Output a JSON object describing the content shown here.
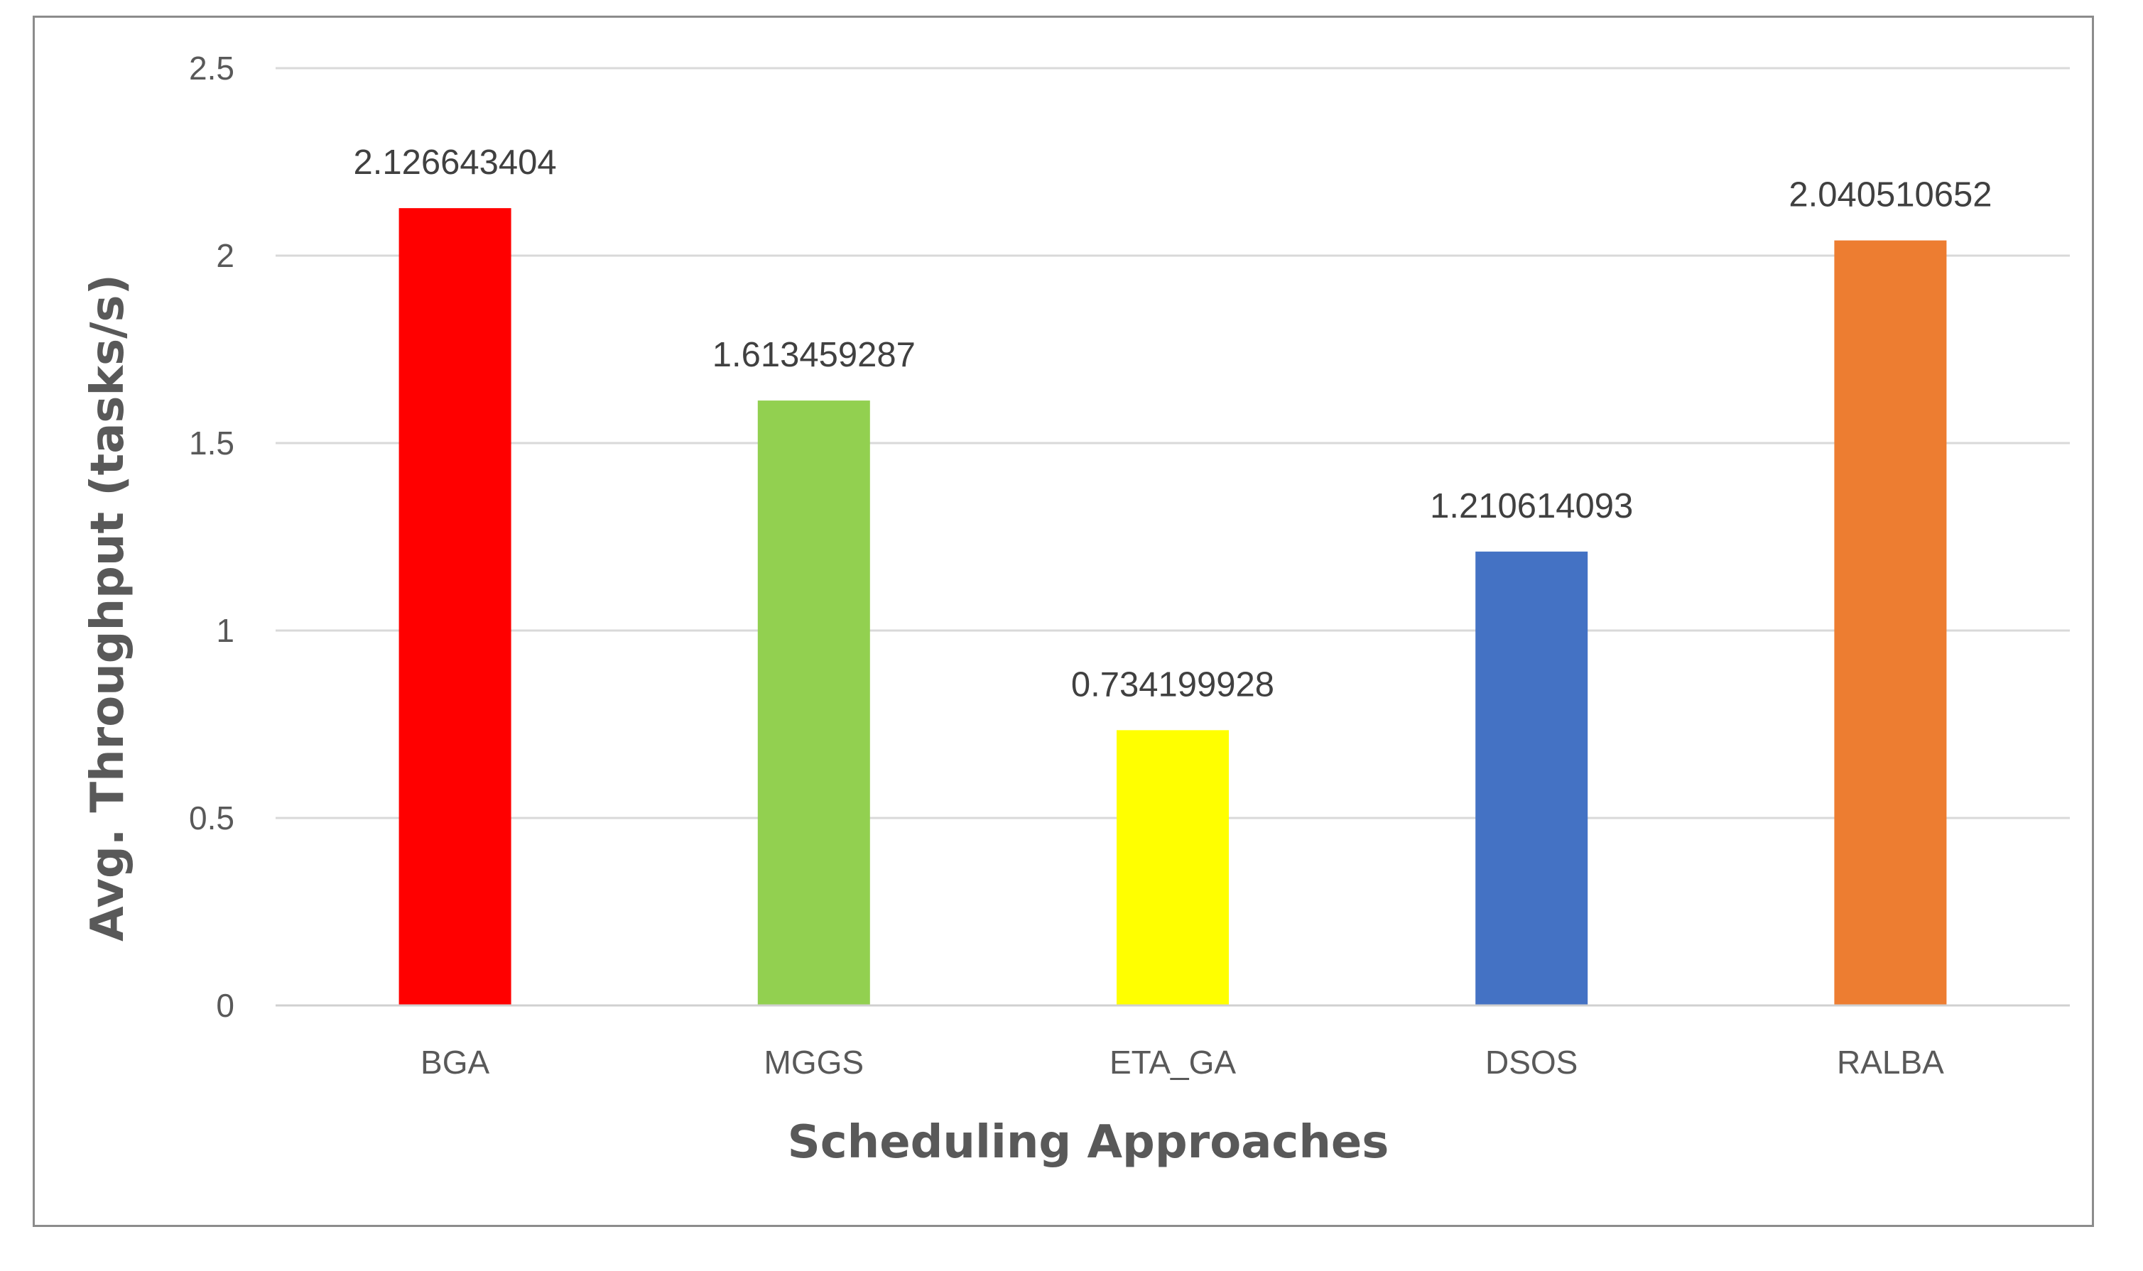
{
  "chart_data": {
    "type": "bar",
    "title": "",
    "xlabel": "Scheduling Approaches",
    "ylabel": "Avg. Throughput (tasks/s)",
    "categories": [
      "BGA",
      "MGGS",
      "ETA_GA",
      "DSOS",
      "RALBA"
    ],
    "values": [
      2.126643404,
      1.613459287,
      0.734199928,
      1.210614093,
      2.040510652
    ],
    "value_labels": [
      "2.126643404",
      "1.613459287",
      "0.734199928",
      "1.210614093",
      "2.040510652"
    ],
    "colors": [
      "#ff0000",
      "#92d050",
      "#ffff00",
      "#4472c4",
      "#ed7d31"
    ],
    "ylim": [
      0,
      2.5
    ],
    "yticks": [
      0,
      0.5,
      1,
      1.5,
      2,
      2.5
    ],
    "ytick_labels": [
      "0",
      "0.5",
      "1",
      "1.5",
      "2",
      "2.5"
    ],
    "grid": true,
    "legend": "none"
  }
}
